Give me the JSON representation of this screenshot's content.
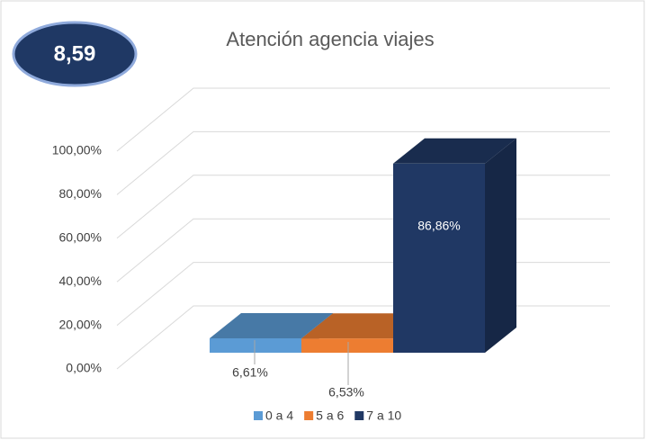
{
  "chart_data": {
    "type": "bar3d",
    "title": "Atención agencia viajes",
    "annotation": "8,59",
    "categories": [
      null
    ],
    "series": [
      {
        "name": "0 a 4",
        "color": "#5b9bd5",
        "values": [
          6.61
        ],
        "value_labels": [
          "6,61%"
        ]
      },
      {
        "name": "5 a 6",
        "color": "#ed7d31",
        "values": [
          6.53
        ],
        "value_labels": [
          "6,53%"
        ]
      },
      {
        "name": "7 a 10",
        "color": "#203864",
        "values": [
          86.86
        ],
        "value_labels": [
          "86,86%"
        ]
      }
    ],
    "ylim": [
      0,
      100
    ],
    "yticks": [
      {
        "value": 0,
        "label": "0,00%"
      },
      {
        "value": 20,
        "label": "20,00%"
      },
      {
        "value": 40,
        "label": "40,00%"
      },
      {
        "value": 60,
        "label": "60,00%"
      },
      {
        "value": 80,
        "label": "80,00%"
      },
      {
        "value": 100,
        "label": "100,00%"
      }
    ],
    "grid": true,
    "legend": "bottom"
  }
}
